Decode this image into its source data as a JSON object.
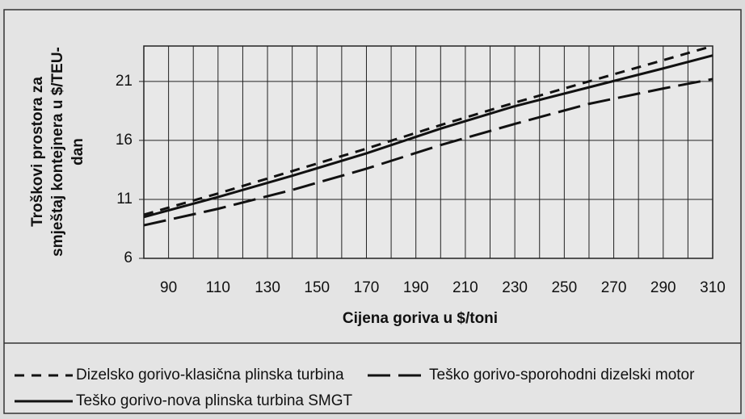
{
  "chart_data": {
    "type": "line",
    "x_label": "Cijena goriva u $/toni",
    "y_label": [
      "Troškovi prostora za",
      "smještaj kontejnera u $/TEU-",
      "dan"
    ],
    "x": [
      80,
      110,
      140,
      170,
      200,
      230,
      260,
      290,
      310
    ],
    "series": [
      {
        "name": "Dizelsko gorivo-klasična plinska turbina",
        "color": "#111111",
        "style": "dashed",
        "values": [
          9.7,
          11.5,
          13.4,
          15.3,
          17.3,
          19.2,
          21.0,
          22.8,
          24.0
        ]
      },
      {
        "name": "Teško gorivo-sporohodni dizelski motor",
        "color": "#111111",
        "style": "longdash",
        "values": [
          8.8,
          10.2,
          11.8,
          13.6,
          15.6,
          17.4,
          19.1,
          20.4,
          21.2
        ]
      },
      {
        "name": "Teško gorivo-nova plinska turbina SMGT",
        "color": "#111111",
        "style": "solid",
        "values": [
          9.5,
          11.2,
          13.0,
          14.9,
          17.0,
          18.9,
          20.5,
          22.1,
          23.2
        ]
      }
    ],
    "xlim": [
      80,
      310
    ],
    "xticks": [
      90,
      110,
      130,
      150,
      170,
      190,
      210,
      230,
      250,
      270,
      290,
      310
    ],
    "xgrid": [
      80,
      100,
      120,
      140,
      160,
      180,
      200,
      220,
      240,
      260,
      280,
      300
    ],
    "ylim": [
      6,
      24
    ],
    "yticks": [
      6,
      11,
      16,
      21
    ],
    "grid": true
  }
}
